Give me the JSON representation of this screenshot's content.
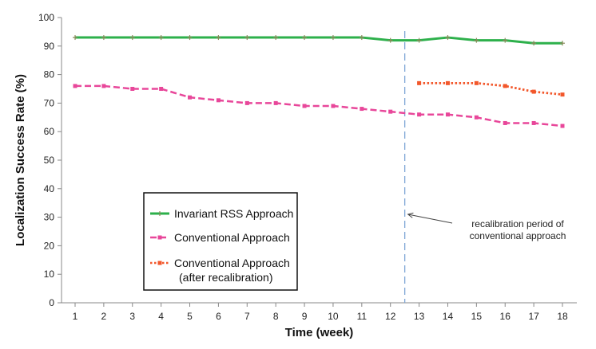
{
  "chart_data": {
    "type": "line",
    "title": "",
    "xlabel": "Time (week)",
    "ylabel": "Localization Success Rate (%)",
    "xlim": [
      1,
      18
    ],
    "ylim": [
      0,
      100
    ],
    "x_ticks": [
      1,
      2,
      3,
      4,
      5,
      6,
      7,
      8,
      9,
      10,
      11,
      12,
      13,
      14,
      15,
      16,
      17,
      18
    ],
    "y_ticks": [
      0,
      10,
      20,
      30,
      40,
      50,
      60,
      70,
      80,
      90,
      100
    ],
    "grid": false,
    "legend_position": "bottom-left",
    "series": [
      {
        "name": "Invariant RSS Approach",
        "color": "#2db04b",
        "style": "solid",
        "marker": "plus",
        "x": [
          1,
          2,
          3,
          4,
          5,
          6,
          7,
          8,
          9,
          10,
          11,
          12,
          13,
          14,
          15,
          16,
          17,
          18
        ],
        "y": [
          93,
          93,
          93,
          93,
          93,
          93,
          93,
          93,
          93,
          93,
          93,
          92,
          92,
          93,
          92,
          92,
          91,
          91
        ]
      },
      {
        "name": "Conventional Approach",
        "color": "#e8479a",
        "style": "dashed",
        "marker": "square",
        "x": [
          1,
          2,
          3,
          4,
          5,
          6,
          7,
          8,
          9,
          10,
          11,
          12,
          13,
          14,
          15,
          16,
          17,
          18
        ],
        "y": [
          76,
          76,
          75,
          75,
          72,
          71,
          70,
          70,
          69,
          69,
          68,
          67,
          66,
          66,
          65,
          63,
          63,
          62
        ]
      },
      {
        "name": "Conventional Approach",
        "name_line2": "(after recalibration)",
        "color": "#f2572b",
        "style": "dotted",
        "marker": "square",
        "x": [
          13,
          14,
          15,
          16,
          17,
          18
        ],
        "y": [
          77,
          77,
          77,
          76,
          74,
          73
        ]
      }
    ],
    "vline": {
      "x": 12.5,
      "color": "#7fa7d6",
      "style": "dashed"
    },
    "annotation": {
      "line1": "recalibration period of",
      "line2": "conventional approach",
      "arrow_target_x": 12.5,
      "arrow_target_y": 31
    }
  }
}
